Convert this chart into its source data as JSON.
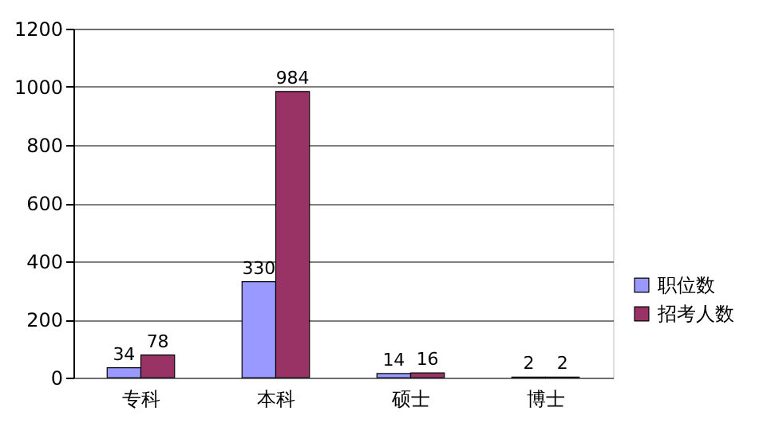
{
  "chart_data": {
    "type": "bar",
    "categories": [
      "专科",
      "本科",
      "硕士",
      "博士"
    ],
    "series": [
      {
        "name": "职位数",
        "color": "#9999ff",
        "values": [
          34,
          330,
          14,
          2
        ]
      },
      {
        "name": "招考人数",
        "color": "#993366",
        "values": [
          78,
          984,
          16,
          2
        ]
      }
    ],
    "ylim": [
      0,
      1200
    ],
    "yticks": [
      0,
      200,
      400,
      600,
      800,
      1000,
      1200
    ],
    "grid": "y",
    "legend": "bottom right",
    "data_labels": true
  }
}
